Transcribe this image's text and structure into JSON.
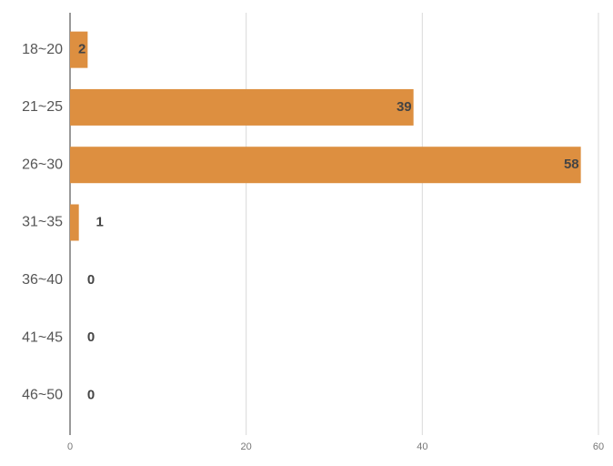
{
  "chart_data": {
    "type": "bar",
    "orientation": "horizontal",
    "categories": [
      "18~20",
      "21~25",
      "26~30",
      "31~35",
      "36~40",
      "41~45",
      "46~50"
    ],
    "values": [
      2,
      39,
      58,
      1,
      0,
      0,
      0
    ],
    "color": "#dd8f40",
    "xlim": [
      0,
      60
    ],
    "xticks": [
      0,
      20,
      40,
      60
    ],
    "grid": true
  }
}
